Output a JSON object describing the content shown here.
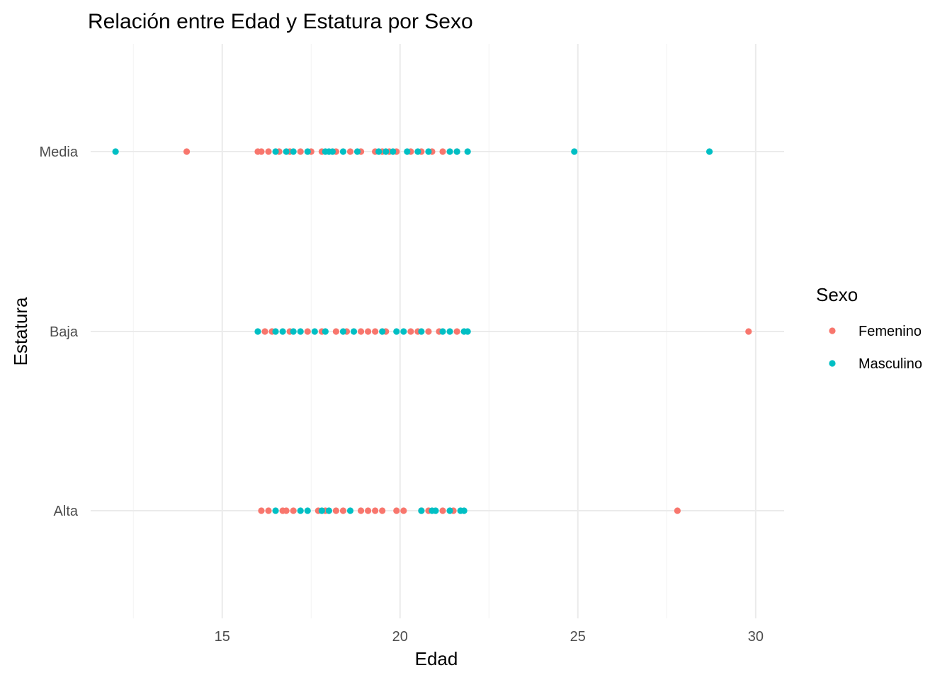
{
  "chart_data": {
    "type": "scatter",
    "title": "Relación entre Edad y Estatura por Sexo",
    "xlabel": "Edad",
    "ylabel": "Estatura",
    "xlim": [
      11.3,
      30.8
    ],
    "x_ticks": [
      15,
      20,
      25,
      30
    ],
    "x_minor_ticks": [
      12.5,
      17.5,
      22.5,
      27.5
    ],
    "categories": [
      "Alta",
      "Baja",
      "Media"
    ],
    "grid": true,
    "legend": {
      "title": "Sexo",
      "position": "right"
    },
    "series": [
      {
        "name": "Femenino",
        "color": "#F8766D",
        "points": [
          {
            "x": 14.0,
            "y": "Media"
          },
          {
            "x": 16.0,
            "y": "Media"
          },
          {
            "x": 16.1,
            "y": "Media"
          },
          {
            "x": 16.3,
            "y": "Media"
          },
          {
            "x": 16.6,
            "y": "Media"
          },
          {
            "x": 16.9,
            "y": "Media"
          },
          {
            "x": 17.2,
            "y": "Media"
          },
          {
            "x": 17.5,
            "y": "Media"
          },
          {
            "x": 17.8,
            "y": "Media"
          },
          {
            "x": 18.2,
            "y": "Media"
          },
          {
            "x": 18.6,
            "y": "Media"
          },
          {
            "x": 18.9,
            "y": "Media"
          },
          {
            "x": 19.3,
            "y": "Media"
          },
          {
            "x": 19.5,
            "y": "Media"
          },
          {
            "x": 19.7,
            "y": "Media"
          },
          {
            "x": 19.9,
            "y": "Media"
          },
          {
            "x": 20.3,
            "y": "Media"
          },
          {
            "x": 20.6,
            "y": "Media"
          },
          {
            "x": 20.9,
            "y": "Media"
          },
          {
            "x": 21.2,
            "y": "Media"
          },
          {
            "x": 21.6,
            "y": "Media"
          },
          {
            "x": 16.2,
            "y": "Baja"
          },
          {
            "x": 16.4,
            "y": "Baja"
          },
          {
            "x": 16.9,
            "y": "Baja"
          },
          {
            "x": 17.4,
            "y": "Baja"
          },
          {
            "x": 17.8,
            "y": "Baja"
          },
          {
            "x": 18.2,
            "y": "Baja"
          },
          {
            "x": 18.5,
            "y": "Baja"
          },
          {
            "x": 18.9,
            "y": "Baja"
          },
          {
            "x": 19.1,
            "y": "Baja"
          },
          {
            "x": 19.3,
            "y": "Baja"
          },
          {
            "x": 19.6,
            "y": "Baja"
          },
          {
            "x": 20.3,
            "y": "Baja"
          },
          {
            "x": 20.5,
            "y": "Baja"
          },
          {
            "x": 20.8,
            "y": "Baja"
          },
          {
            "x": 21.1,
            "y": "Baja"
          },
          {
            "x": 21.6,
            "y": "Baja"
          },
          {
            "x": 29.8,
            "y": "Baja"
          },
          {
            "x": 16.1,
            "y": "Alta"
          },
          {
            "x": 16.3,
            "y": "Alta"
          },
          {
            "x": 16.7,
            "y": "Alta"
          },
          {
            "x": 16.8,
            "y": "Alta"
          },
          {
            "x": 17.0,
            "y": "Alta"
          },
          {
            "x": 17.7,
            "y": "Alta"
          },
          {
            "x": 17.9,
            "y": "Alta"
          },
          {
            "x": 18.2,
            "y": "Alta"
          },
          {
            "x": 18.4,
            "y": "Alta"
          },
          {
            "x": 18.9,
            "y": "Alta"
          },
          {
            "x": 19.1,
            "y": "Alta"
          },
          {
            "x": 19.3,
            "y": "Alta"
          },
          {
            "x": 19.5,
            "y": "Alta"
          },
          {
            "x": 19.9,
            "y": "Alta"
          },
          {
            "x": 20.1,
            "y": "Alta"
          },
          {
            "x": 20.6,
            "y": "Alta"
          },
          {
            "x": 20.8,
            "y": "Alta"
          },
          {
            "x": 21.2,
            "y": "Alta"
          },
          {
            "x": 21.5,
            "y": "Alta"
          },
          {
            "x": 27.8,
            "y": "Alta"
          }
        ]
      },
      {
        "name": "Masculino",
        "color": "#00BFC4",
        "points": [
          {
            "x": 12.0,
            "y": "Media"
          },
          {
            "x": 16.5,
            "y": "Media"
          },
          {
            "x": 16.8,
            "y": "Media"
          },
          {
            "x": 17.0,
            "y": "Media"
          },
          {
            "x": 17.4,
            "y": "Media"
          },
          {
            "x": 17.9,
            "y": "Media"
          },
          {
            "x": 18.0,
            "y": "Media"
          },
          {
            "x": 18.1,
            "y": "Media"
          },
          {
            "x": 18.4,
            "y": "Media"
          },
          {
            "x": 18.8,
            "y": "Media"
          },
          {
            "x": 19.4,
            "y": "Media"
          },
          {
            "x": 19.6,
            "y": "Media"
          },
          {
            "x": 19.8,
            "y": "Media"
          },
          {
            "x": 20.2,
            "y": "Media"
          },
          {
            "x": 20.5,
            "y": "Media"
          },
          {
            "x": 20.8,
            "y": "Media"
          },
          {
            "x": 21.4,
            "y": "Media"
          },
          {
            "x": 21.6,
            "y": "Media"
          },
          {
            "x": 21.9,
            "y": "Media"
          },
          {
            "x": 24.9,
            "y": "Media"
          },
          {
            "x": 28.7,
            "y": "Media"
          },
          {
            "x": 16.0,
            "y": "Baja"
          },
          {
            "x": 16.5,
            "y": "Baja"
          },
          {
            "x": 16.7,
            "y": "Baja"
          },
          {
            "x": 17.0,
            "y": "Baja"
          },
          {
            "x": 17.2,
            "y": "Baja"
          },
          {
            "x": 17.6,
            "y": "Baja"
          },
          {
            "x": 17.9,
            "y": "Baja"
          },
          {
            "x": 18.4,
            "y": "Baja"
          },
          {
            "x": 18.7,
            "y": "Baja"
          },
          {
            "x": 19.5,
            "y": "Baja"
          },
          {
            "x": 19.9,
            "y": "Baja"
          },
          {
            "x": 20.1,
            "y": "Baja"
          },
          {
            "x": 20.6,
            "y": "Baja"
          },
          {
            "x": 21.2,
            "y": "Baja"
          },
          {
            "x": 21.4,
            "y": "Baja"
          },
          {
            "x": 21.8,
            "y": "Baja"
          },
          {
            "x": 21.9,
            "y": "Baja"
          },
          {
            "x": 16.5,
            "y": "Alta"
          },
          {
            "x": 17.2,
            "y": "Alta"
          },
          {
            "x": 17.4,
            "y": "Alta"
          },
          {
            "x": 17.8,
            "y": "Alta"
          },
          {
            "x": 18.0,
            "y": "Alta"
          },
          {
            "x": 18.6,
            "y": "Alta"
          },
          {
            "x": 20.6,
            "y": "Alta"
          },
          {
            "x": 20.9,
            "y": "Alta"
          },
          {
            "x": 21.0,
            "y": "Alta"
          },
          {
            "x": 21.4,
            "y": "Alta"
          },
          {
            "x": 21.7,
            "y": "Alta"
          },
          {
            "x": 21.8,
            "y": "Alta"
          }
        ]
      }
    ]
  }
}
